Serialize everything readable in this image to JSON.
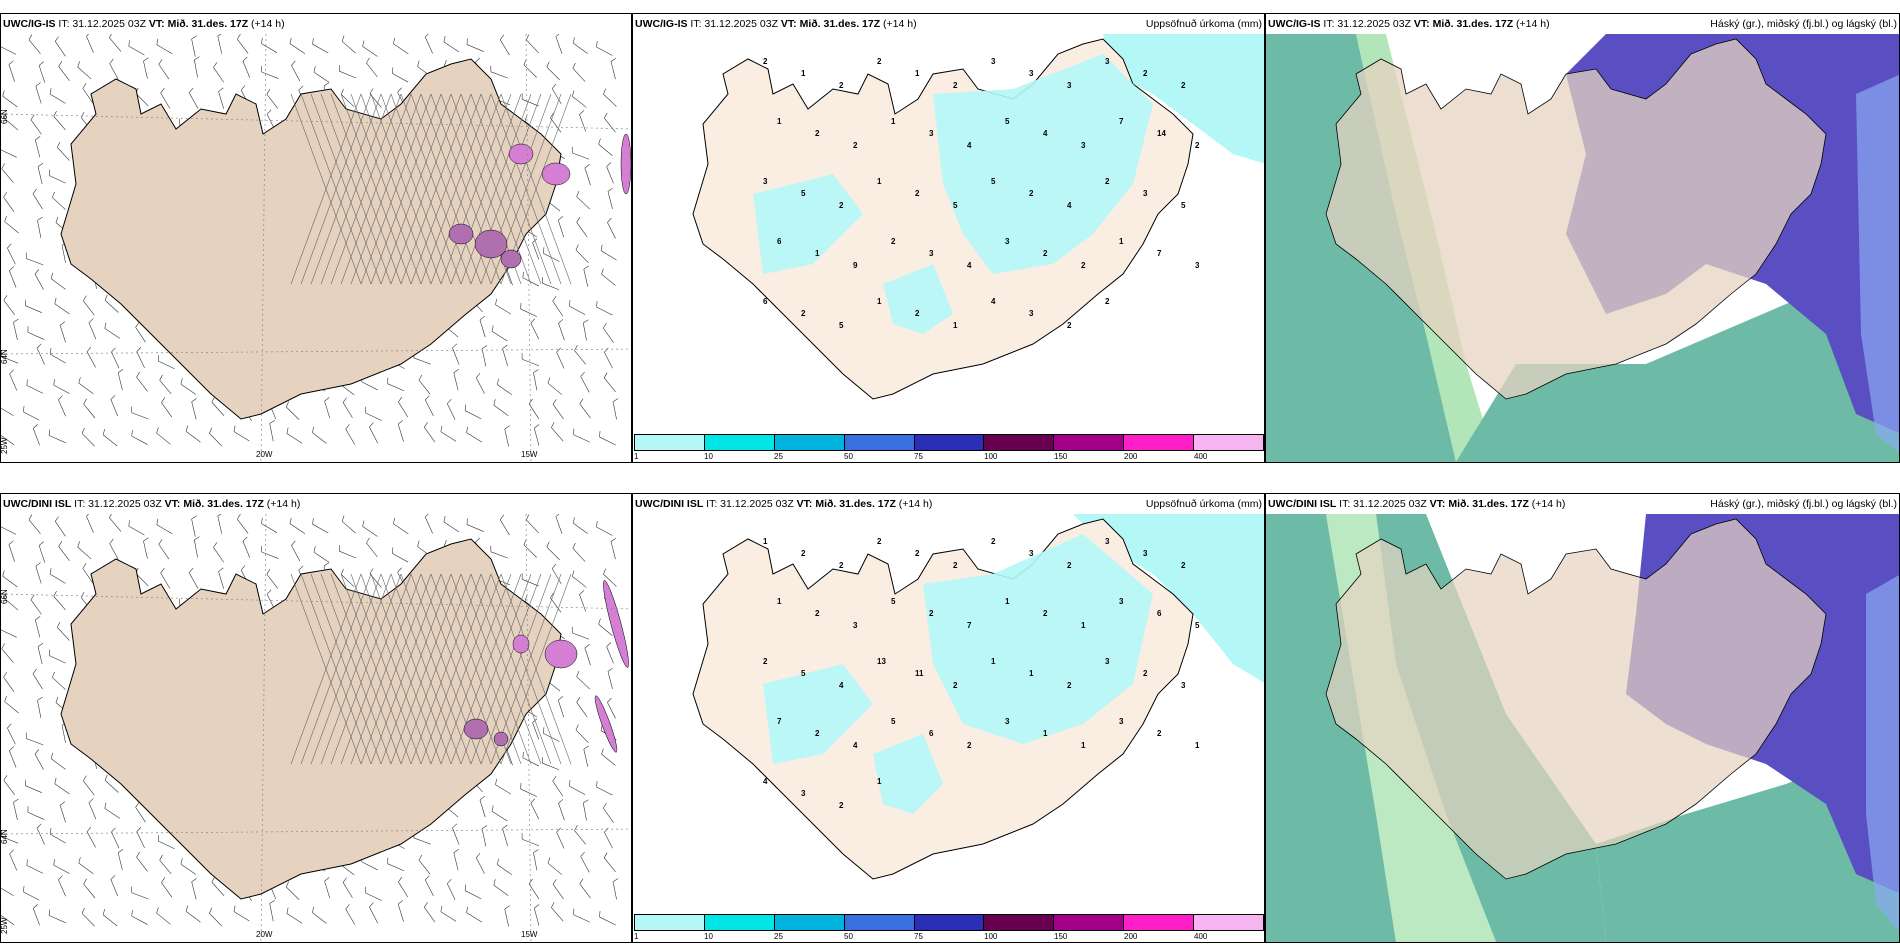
{
  "rows": [
    {
      "model": "UWC/IG-IS",
      "it": "IT: 31.12.2025 03Z",
      "vt": "VT: Mið. 31.des. 17Z",
      "lead": "(+14 h)",
      "wind_labels": {
        "lat66": "66N",
        "lat64": "64N",
        "lon25": "25W",
        "lon20": "20W",
        "lon15": "15W"
      },
      "precip_numbers": [
        "2",
        "1",
        "2",
        "2",
        "1",
        "2",
        "3",
        "3",
        "3",
        "3",
        "2",
        "2",
        "1",
        "2",
        "2",
        "1",
        "3",
        "4",
        "5",
        "4",
        "3",
        "7",
        "14",
        "2",
        "3",
        "5",
        "2",
        "1",
        "2",
        "5",
        "5",
        "2",
        "4",
        "2",
        "3",
        "5",
        "6",
        "1",
        "9",
        "2",
        "3",
        "4",
        "3",
        "2",
        "2",
        "1",
        "7",
        "3",
        "6",
        "2",
        "5",
        "1",
        "2",
        "1",
        "4",
        "3",
        "2",
        "2"
      ]
    },
    {
      "model": "UWC/DINI ISL",
      "it": "IT: 31.12.2025 03Z",
      "vt": "VT: Mið. 31.des. 17Z",
      "lead": "(+14 h)",
      "wind_labels": {
        "lat66": "66N",
        "lat64": "64N",
        "lon25": "25W",
        "lon20": "20W",
        "lon15": "15W"
      },
      "precip_numbers": [
        "1",
        "2",
        "2",
        "2",
        "2",
        "2",
        "2",
        "3",
        "2",
        "3",
        "3",
        "2",
        "1",
        "2",
        "3",
        "5",
        "2",
        "7",
        "1",
        "2",
        "1",
        "3",
        "6",
        "5",
        "2",
        "5",
        "4",
        "13",
        "11",
        "2",
        "1",
        "1",
        "2",
        "3",
        "2",
        "3",
        "7",
        "2",
        "4",
        "5",
        "6",
        "2",
        "3",
        "1",
        "1",
        "3",
        "2",
        "1",
        "4",
        "3",
        "2",
        "1"
      ]
    }
  ],
  "precip_title": "Uppsöfnuð úrkoma (mm)",
  "cloud_title": "Háský (gr.), miðský (fj.bl.) og lágský (bl.)",
  "colorbar": {
    "ticks": [
      "1",
      "10",
      "25",
      "50",
      "75",
      "100",
      "150",
      "200",
      "400"
    ],
    "colors": [
      "#b3f7f7",
      "#00e5e5",
      "#00b4dd",
      "#3a6fe0",
      "#2b2fb8",
      "#6a0050",
      "#a3008a",
      "#ff1fc8",
      "#f6b5f0"
    ]
  },
  "colors": {
    "land": "#e5d3c0",
    "precip_land": "#faeee3",
    "precip_light": "#b3f7f7",
    "cloud_high": "#6dbba7",
    "cloud_mid_green": "#9fe0a6",
    "cloud_low": "#5a4fc2",
    "cloud_blue_light": "#8aa9f2",
    "ice_purple": "#d47fd4"
  }
}
